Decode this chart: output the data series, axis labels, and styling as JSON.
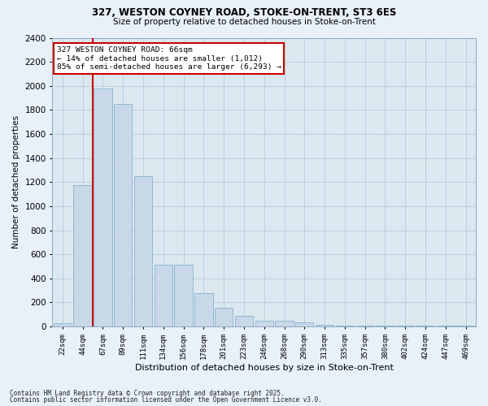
{
  "title1": "327, WESTON COYNEY ROAD, STOKE-ON-TRENT, ST3 6ES",
  "title2": "Size of property relative to detached houses in Stoke-on-Trent",
  "xlabel": "Distribution of detached houses by size in Stoke-on-Trent",
  "ylabel": "Number of detached properties",
  "categories": [
    "22sqm",
    "44sqm",
    "67sqm",
    "89sqm",
    "111sqm",
    "134sqm",
    "156sqm",
    "178sqm",
    "201sqm",
    "223sqm",
    "246sqm",
    "268sqm",
    "290sqm",
    "313sqm",
    "335sqm",
    "357sqm",
    "380sqm",
    "402sqm",
    "424sqm",
    "447sqm",
    "469sqm"
  ],
  "values": [
    25,
    1175,
    1975,
    1850,
    1250,
    515,
    515,
    275,
    155,
    90,
    45,
    45,
    35,
    15,
    10,
    5,
    5,
    5,
    5,
    5,
    5
  ],
  "bar_color": "#c8d8e8",
  "bar_edge_color": "#7aaac8",
  "annotation_text": "327 WESTON COYNEY ROAD: 66sqm\n← 14% of detached houses are smaller (1,012)\n85% of semi-detached houses are larger (6,293) →",
  "annotation_box_color": "#ffffff",
  "annotation_box_edge": "#cc0000",
  "vline_color": "#cc0000",
  "vline_x_index": 1.5,
  "ylim": [
    0,
    2400
  ],
  "yticks": [
    0,
    200,
    400,
    600,
    800,
    1000,
    1200,
    1400,
    1600,
    1800,
    2000,
    2200,
    2400
  ],
  "grid_color": "#b8ccd8",
  "bg_color": "#dce8f0",
  "fig_bg_color": "#e8f0f8",
  "footnote1": "Contains HM Land Registry data © Crown copyright and database right 2025.",
  "footnote2": "Contains public sector information licensed under the Open Government Licence v3.0."
}
